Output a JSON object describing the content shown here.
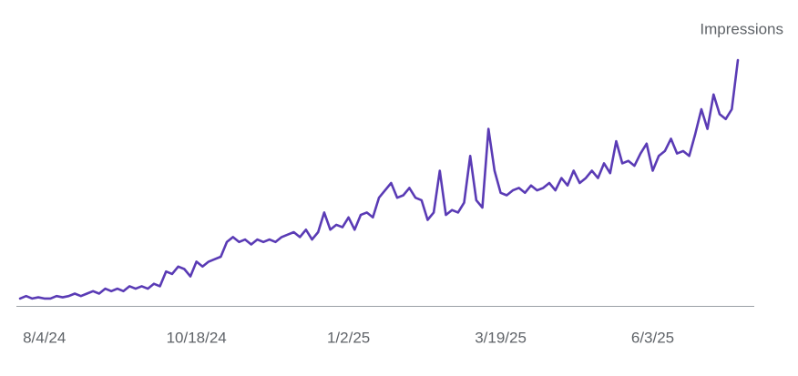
{
  "chart_data": {
    "type": "line",
    "title": "Impressions",
    "categories": [
      null,
      null,
      null,
      null,
      "8/4/24",
      null,
      null,
      null,
      null,
      null,
      null,
      null,
      null,
      null,
      null,
      null,
      null,
      null,
      null,
      null,
      null,
      null,
      null,
      null,
      null,
      null,
      null,
      null,
      null,
      "10/18/24",
      null,
      null,
      null,
      null,
      null,
      null,
      null,
      null,
      null,
      null,
      null,
      null,
      null,
      null,
      null,
      null,
      null,
      null,
      null,
      null,
      null,
      null,
      null,
      null,
      "1/2/25",
      null,
      null,
      null,
      null,
      null,
      null,
      null,
      null,
      null,
      null,
      null,
      null,
      null,
      null,
      null,
      null,
      null,
      null,
      null,
      null,
      null,
      null,
      null,
      null,
      "3/19/25",
      null,
      null,
      null,
      null,
      null,
      null,
      null,
      null,
      null,
      null,
      null,
      null,
      null,
      null,
      null,
      null,
      null,
      null,
      null,
      null,
      null,
      null,
      null,
      null,
      "6/3/25",
      null,
      null,
      null,
      null,
      null,
      null,
      null,
      null,
      null,
      null,
      null,
      null,
      null,
      null
    ],
    "series": [
      {
        "name": "Impressions",
        "color": "#5a3bb5",
        "values": [
          3,
          4,
          3,
          3.5,
          3,
          3,
          4,
          3.5,
          4,
          5,
          4,
          5,
          6,
          5,
          7,
          6,
          7,
          6,
          8,
          7,
          8,
          7,
          9,
          8,
          14,
          13,
          16,
          15,
          12,
          18,
          16,
          18,
          19,
          20,
          26,
          28,
          26,
          27,
          25,
          27,
          26,
          27,
          26,
          28,
          29,
          30,
          28,
          31,
          27,
          30,
          38,
          31,
          33,
          32,
          36,
          31,
          37,
          38,
          36,
          44,
          47,
          50,
          44,
          45,
          48,
          44,
          43,
          35,
          38,
          55,
          37,
          39,
          38,
          42,
          61,
          43,
          40,
          72,
          55,
          46,
          45,
          47,
          48,
          46,
          49,
          47,
          48,
          50,
          47,
          52,
          49,
          55,
          50,
          52,
          55,
          52,
          58,
          54,
          67,
          58,
          59,
          57,
          62,
          66,
          55,
          61,
          63,
          68,
          62,
          63,
          61,
          70,
          80,
          72,
          86,
          78,
          76,
          80,
          100
        ]
      }
    ],
    "ylim": [
      0,
      110
    ]
  }
}
